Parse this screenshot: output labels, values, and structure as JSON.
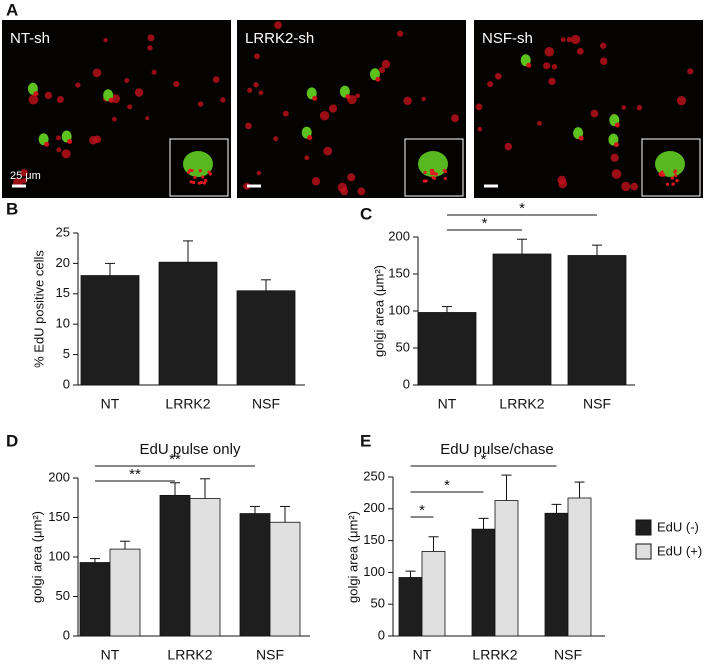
{
  "panel_a": {
    "label": "A",
    "images": [
      {
        "label": "NT-sh"
      },
      {
        "label": "LRRK2-sh"
      },
      {
        "label": "NSF-sh"
      }
    ],
    "scale_bar": "25 μm"
  },
  "chart_data": [
    {
      "type": "bar",
      "panel_label": "B",
      "ylabel": "% EdU positive cells",
      "categories": [
        "NT",
        "LRRK2",
        "NSF"
      ],
      "series": [
        {
          "color": "#1e1e1e",
          "values": [
            18,
            20.2,
            15.5
          ],
          "errors": [
            2,
            3.5,
            1.8
          ]
        }
      ],
      "ylim": [
        0,
        25
      ],
      "yticks": [
        0,
        5,
        10,
        15,
        20,
        25
      ],
      "annotations": []
    },
    {
      "type": "bar",
      "panel_label": "C",
      "ylabel": "golgi area (μm²)",
      "categories": [
        "NT",
        "LRRK2",
        "NSF"
      ],
      "series": [
        {
          "color": "#1e1e1e",
          "values": [
            98,
            177,
            175
          ],
          "errors": [
            8,
            20,
            14
          ]
        }
      ],
      "ylim": [
        0,
        200
      ],
      "yticks": [
        0,
        50,
        100,
        150,
        200
      ],
      "annotations": [
        {
          "text": "*",
          "from": [
            0,
            0
          ],
          "to": [
            1,
            0
          ]
        },
        {
          "text": "*",
          "from": [
            0,
            0
          ],
          "to": [
            2,
            0
          ]
        }
      ]
    },
    {
      "type": "bar",
      "panel_label": "D",
      "title": "EdU pulse only",
      "ylabel": "golgi area (μm²)",
      "categories": [
        "NT",
        "LRRK2",
        "NSF"
      ],
      "series": [
        {
          "color": "#1e1e1e",
          "values": [
            93,
            178,
            155
          ],
          "errors": [
            5,
            16,
            9
          ]
        },
        {
          "color": "#e0e0e0",
          "values": [
            110,
            174,
            144
          ],
          "errors": [
            10,
            25,
            20
          ]
        }
      ],
      "ylim": [
        0,
        200
      ],
      "yticks": [
        0,
        50,
        100,
        150,
        200
      ],
      "annotations": [
        {
          "text": "**",
          "from": [
            0,
            0
          ],
          "to": [
            1,
            0
          ]
        },
        {
          "text": "**",
          "from": [
            0,
            0
          ],
          "to": [
            2,
            0
          ]
        }
      ]
    },
    {
      "type": "bar",
      "panel_label": "E",
      "title": "EdU pulse/chase",
      "ylabel": "golgi area (μm²)",
      "categories": [
        "NT",
        "LRRK2",
        "NSF"
      ],
      "series": [
        {
          "name": "EdU (-)",
          "color": "#1e1e1e",
          "values": [
            92,
            168,
            193
          ],
          "errors": [
            10,
            17,
            14
          ]
        },
        {
          "name": "EdU (+)",
          "color": "#e0e0e0",
          "values": [
            133,
            213,
            217
          ],
          "errors": [
            23,
            40,
            25
          ]
        }
      ],
      "ylim": [
        0,
        250
      ],
      "yticks": [
        0,
        50,
        100,
        150,
        200,
        250
      ],
      "legend": "right",
      "annotations": [
        {
          "text": "*",
          "from": [
            0,
            0
          ],
          "to": [
            0,
            1
          ]
        },
        {
          "text": "*",
          "from": [
            0,
            0
          ],
          "to": [
            1,
            0
          ]
        },
        {
          "text": "*",
          "from": [
            0,
            0
          ],
          "to": [
            2,
            0
          ]
        }
      ]
    }
  ]
}
